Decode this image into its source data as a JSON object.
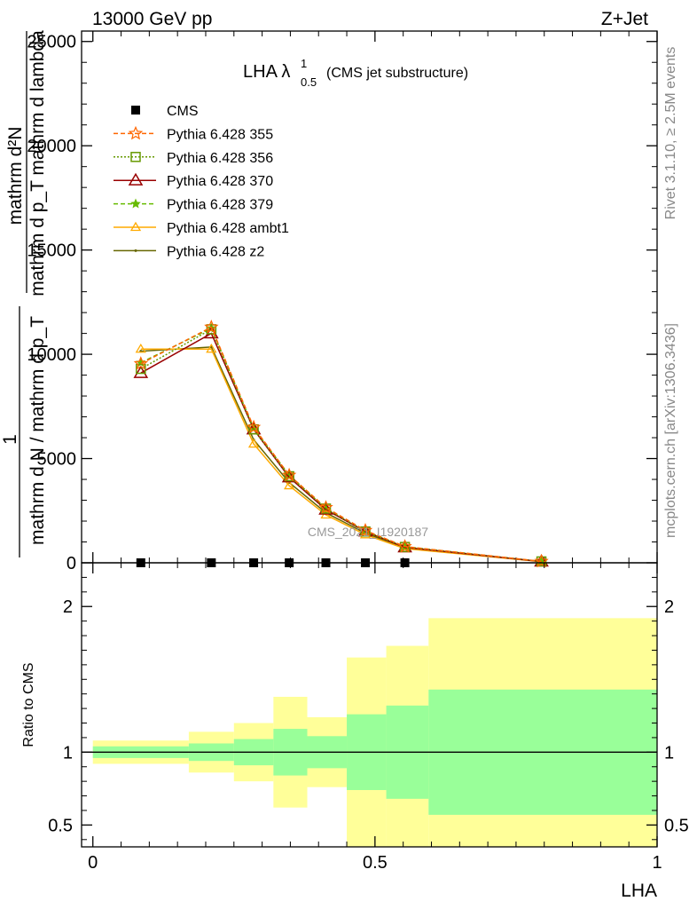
{
  "header": {
    "left": "13000 GeV pp",
    "right": "Z+Jet"
  },
  "side_labels": {
    "rivet": "Rivet 3.1.10, ≥ 2.5M events",
    "mcplots": "mcplots.cern.ch [arXiv:1306.3436]"
  },
  "watermark": "CMS_2021_I1920187",
  "colors": {
    "yellow_band": "#ffff99",
    "green_band": "#99ff99",
    "cms": "#000000",
    "p355": "#ff6600",
    "p356": "#669900",
    "p370": "#990000",
    "p379": "#66bb00",
    "ambt1": "#ffaa00",
    "z2": "#666600"
  },
  "chart_data": [
    {
      "type": "line",
      "title_main": "LHA λ",
      "title_sup": "1",
      "title_sub": "0.5",
      "title_note": "(CMS jet substructure)",
      "ylabel_top": "mathrm d²N",
      "ylabel_bottom": "mathrm d p_T mathrm d lambda",
      "ylabel_prefix": "1",
      "ylabel_prefix_den": "mathrm d N / mathrm d p_T",
      "ylim": [
        0,
        25500
      ],
      "y_ticks": [
        0,
        5000,
        10000,
        15000,
        20000,
        25000
      ],
      "y_tick_labels": [
        "0",
        "5000",
        "10000",
        "15000",
        "20000",
        "25000"
      ],
      "xlim": [
        -0.02,
        1.0
      ],
      "legend": "top-left",
      "series": [
        {
          "name": "CMS",
          "style": "cms",
          "x": [
            0.085,
            0.21,
            0.285,
            0.348,
            0.413,
            0.483,
            0.553
          ],
          "y": [
            0,
            0,
            0,
            0,
            0,
            0,
            0
          ]
        },
        {
          "name": "Pythia 6.428 355",
          "style": "p355",
          "x": [
            0.085,
            0.21,
            0.285,
            0.348,
            0.413,
            0.483,
            0.553,
            0.795
          ],
          "y": [
            9550,
            11300,
            6500,
            4200,
            2650,
            1550,
            780,
            70
          ]
        },
        {
          "name": "Pythia 6.428 356",
          "style": "p356",
          "x": [
            0.085,
            0.21,
            0.285,
            0.348,
            0.413,
            0.483,
            0.553,
            0.795
          ],
          "y": [
            9300,
            11200,
            6400,
            4150,
            2600,
            1500,
            760,
            65
          ]
        },
        {
          "name": "Pythia 6.428 370",
          "style": "p370",
          "x": [
            0.085,
            0.21,
            0.285,
            0.348,
            0.413,
            0.483,
            0.553,
            0.795
          ],
          "y": [
            9100,
            11000,
            6400,
            4100,
            2550,
            1500,
            740,
            60
          ]
        },
        {
          "name": "Pythia 6.428 379",
          "style": "p379",
          "x": [
            0.085,
            0.21,
            0.285,
            0.348,
            0.413,
            0.483,
            0.553,
            0.795
          ],
          "y": [
            9600,
            11250,
            6450,
            4200,
            2600,
            1520,
            770,
            65
          ]
        },
        {
          "name": "Pythia 6.428 ambt1",
          "style": "ambt1",
          "x": [
            0.085,
            0.21,
            0.285,
            0.348,
            0.413,
            0.483,
            0.553,
            0.795
          ],
          "y": [
            10250,
            10250,
            5700,
            3700,
            2300,
            1350,
            680,
            55
          ]
        },
        {
          "name": "Pythia 6.428 z2",
          "style": "z2",
          "x": [
            0.085,
            0.21,
            0.285,
            0.348,
            0.413,
            0.483,
            0.553,
            0.795
          ],
          "y": [
            10150,
            10350,
            5900,
            3850,
            2400,
            1420,
            710,
            58
          ]
        }
      ]
    },
    {
      "type": "area",
      "ylabel": "Ratio to CMS",
      "xlabel": "LHA",
      "ylim": [
        0.35,
        2.3
      ],
      "xlim": [
        -0.02,
        1.0
      ],
      "y_ticks": [
        0.5,
        1,
        2
      ],
      "y_tick_labels": [
        "0.5",
        "1",
        "2"
      ],
      "x_ticks": [
        0,
        0.5,
        1
      ],
      "x_tick_labels": [
        "0",
        "0.5",
        "1"
      ],
      "bins": [
        {
          "lo": 0.0,
          "hi": 0.17,
          "y_lo": 0.92,
          "y_hi": 1.08,
          "g_lo": 0.96,
          "g_hi": 1.04
        },
        {
          "lo": 0.17,
          "hi": 0.25,
          "y_lo": 0.86,
          "y_hi": 1.14,
          "g_lo": 0.94,
          "g_hi": 1.06
        },
        {
          "lo": 0.25,
          "hi": 0.32,
          "y_lo": 0.8,
          "y_hi": 1.2,
          "g_lo": 0.91,
          "g_hi": 1.09
        },
        {
          "lo": 0.32,
          "hi": 0.38,
          "y_lo": 0.62,
          "y_hi": 1.38,
          "g_lo": 0.84,
          "g_hi": 1.16
        },
        {
          "lo": 0.38,
          "hi": 0.45,
          "y_lo": 0.76,
          "y_hi": 1.24,
          "g_lo": 0.89,
          "g_hi": 1.11
        },
        {
          "lo": 0.45,
          "hi": 0.52,
          "y_lo": 0.35,
          "y_hi": 1.65,
          "g_lo": 0.74,
          "g_hi": 1.26
        },
        {
          "lo": 0.52,
          "hi": 0.595,
          "y_lo": 0.35,
          "y_hi": 1.73,
          "g_lo": 0.68,
          "g_hi": 1.32
        },
        {
          "lo": 0.595,
          "hi": 1.0,
          "y_lo": 0.35,
          "y_hi": 1.92,
          "g_lo": 0.57,
          "g_hi": 1.43
        }
      ]
    }
  ]
}
